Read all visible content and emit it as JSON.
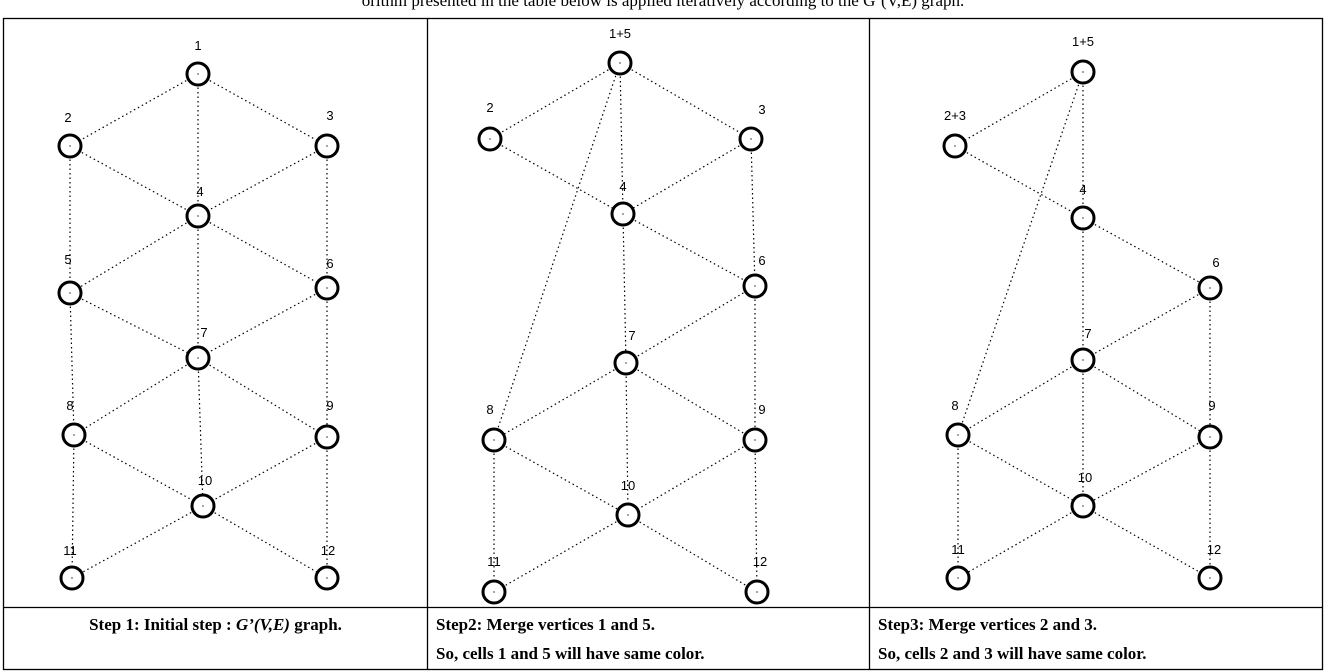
{
  "header": {
    "text": "orithm presented in the table below is applied iteratively according to the G’(V,E) graph."
  },
  "panels": [
    {
      "nodes": [
        {
          "label": "1"
        },
        {
          "label": "2"
        },
        {
          "label": "3"
        },
        {
          "label": "4"
        },
        {
          "label": "5"
        },
        {
          "label": "6"
        },
        {
          "label": "7"
        },
        {
          "label": "8"
        },
        {
          "label": "9"
        },
        {
          "label": "10"
        },
        {
          "label": "11"
        },
        {
          "label": "12"
        }
      ],
      "caption": {
        "prefix": "Step 1: Initial step : ",
        "italic": "G’(V,E)",
        "suffix": " graph."
      }
    },
    {
      "nodes": [
        {
          "label": "1+5"
        },
        {
          "label": "2"
        },
        {
          "label": "3"
        },
        {
          "label": "4"
        },
        {
          "label": "6"
        },
        {
          "label": "7"
        },
        {
          "label": "8"
        },
        {
          "label": "9"
        },
        {
          "label": "10"
        },
        {
          "label": "11"
        },
        {
          "label": "12"
        }
      ],
      "caption": {
        "lines": [
          "Step2: Merge vertices 1 and 5.",
          "So, cells 1 and 5 will have same color."
        ]
      }
    },
    {
      "nodes": [
        {
          "label": "1+5"
        },
        {
          "label": "2+3"
        },
        {
          "label": "4"
        },
        {
          "label": "6"
        },
        {
          "label": "7"
        },
        {
          "label": "8"
        },
        {
          "label": "9"
        },
        {
          "label": "10"
        },
        {
          "label": "11"
        },
        {
          "label": "12"
        }
      ],
      "caption": {
        "lines": [
          "Step3: Merge vertices 2 and 3.",
          "So, cells 2 and 3 will have same color."
        ]
      }
    }
  ]
}
